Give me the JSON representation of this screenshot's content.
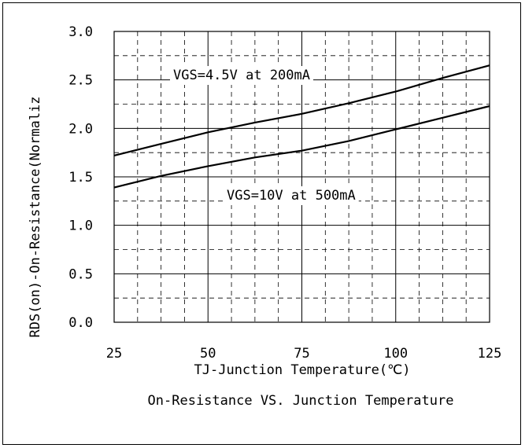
{
  "chart_data": {
    "type": "line",
    "title": "On-Resistance VS. Junction Temperature",
    "xlabel": "TJ-Junction Temperature(℃)",
    "ylabel": "RDS(on)-On-Resistance(Normaliz",
    "xlim": [
      25,
      125
    ],
    "ylim": [
      0.0,
      3.0
    ],
    "x_ticks": [
      "25",
      "50",
      "75",
      "100",
      "125"
    ],
    "y_ticks": [
      "0.0",
      "0.5",
      "1.0",
      "1.5",
      "2.0",
      "2.5",
      "3.0"
    ],
    "grid": true,
    "series": [
      {
        "name": "VGS=4.5V at 200mA",
        "x": [
          25,
          37.5,
          50,
          62.5,
          75,
          87.5,
          100,
          112.5,
          125
        ],
        "y": [
          1.72,
          1.84,
          1.96,
          2.06,
          2.15,
          2.26,
          2.38,
          2.52,
          2.65
        ]
      },
      {
        "name": "VGS=10V at 500mA",
        "x": [
          25,
          37.5,
          50,
          62.5,
          75,
          87.5,
          100,
          112.5,
          125
        ],
        "y": [
          1.39,
          1.51,
          1.61,
          1.7,
          1.77,
          1.87,
          1.99,
          2.11,
          2.23
        ]
      }
    ]
  }
}
